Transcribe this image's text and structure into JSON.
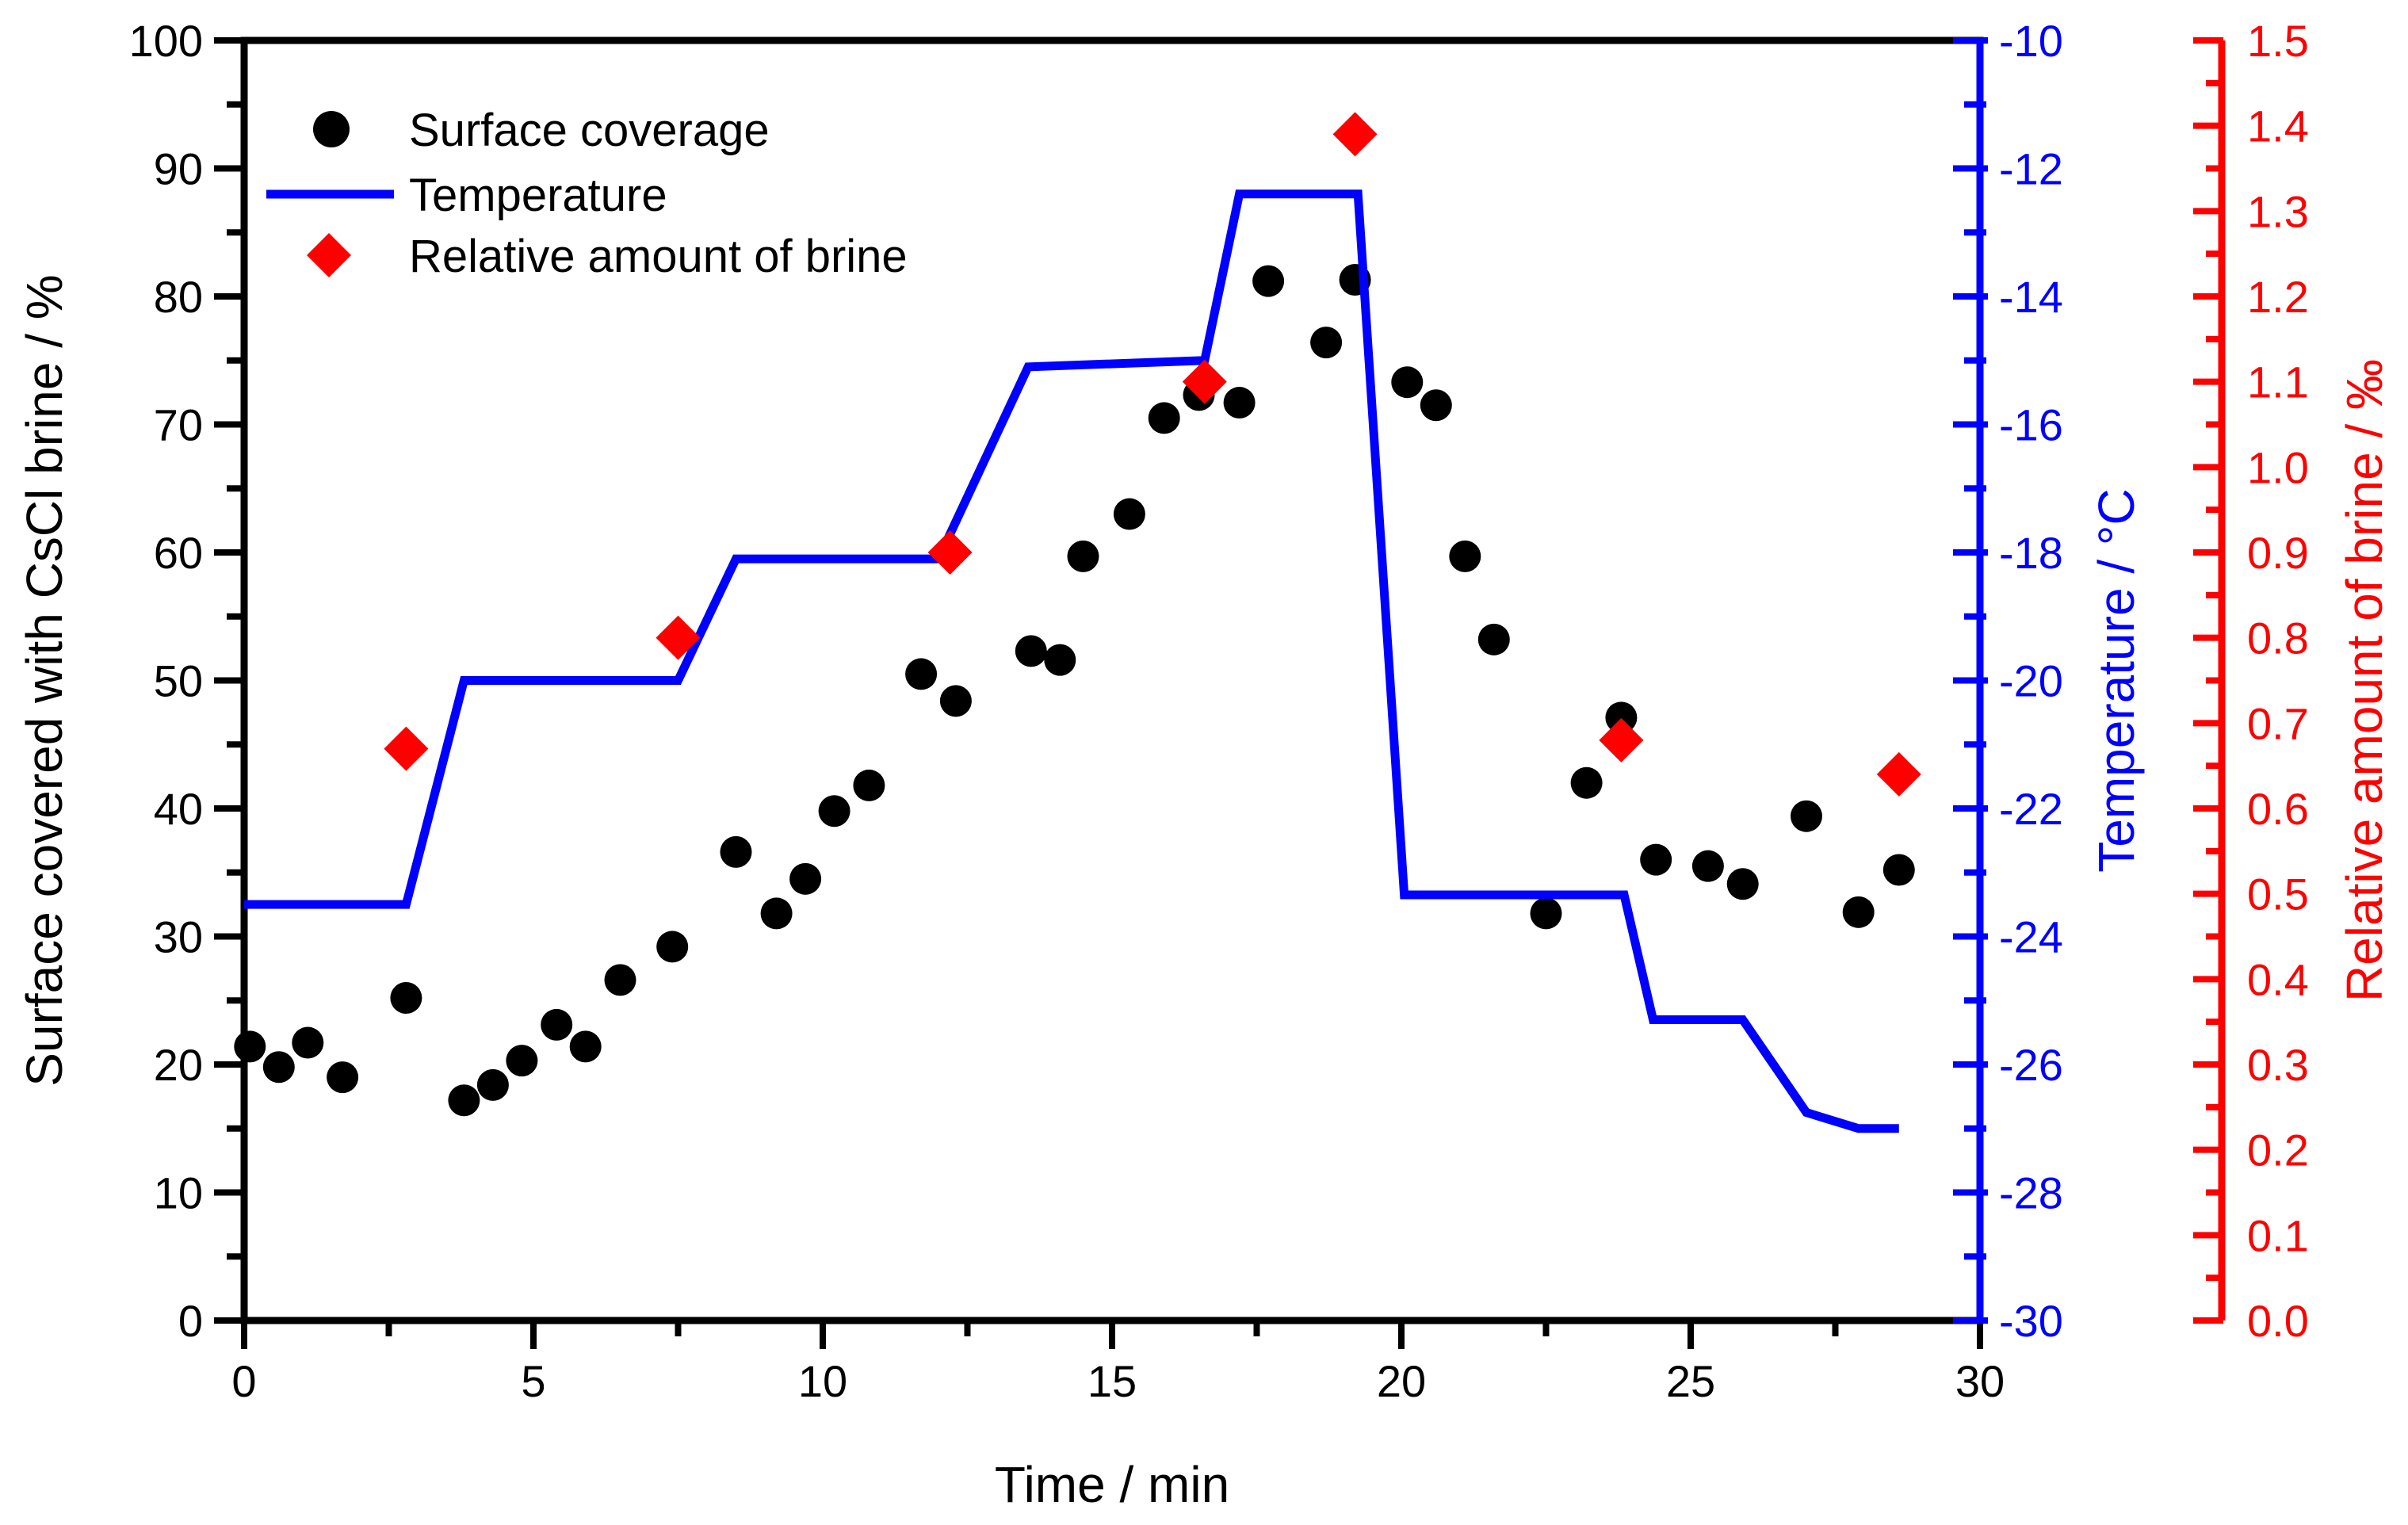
{
  "chart_data": {
    "type": "scatter",
    "background": "#ffffff",
    "axes": {
      "x": {
        "label": "Time / min",
        "min": 0,
        "max": 30,
        "tick_values": [
          0,
          5,
          10,
          15,
          20,
          25,
          30
        ],
        "tick_labels": [
          "0",
          "5",
          "10",
          "15",
          "20",
          "25",
          "30"
        ],
        "minor_step": 2.5,
        "color": "#000000"
      },
      "y_left": {
        "label": "Surface covered with CsCl brine / %",
        "min": 0,
        "max": 100,
        "tick_values": [
          0,
          10,
          20,
          30,
          40,
          50,
          60,
          70,
          80,
          90,
          100
        ],
        "tick_labels": [
          "0",
          "10",
          "20",
          "30",
          "40",
          "50",
          "60",
          "70",
          "80",
          "90",
          "100"
        ],
        "minor_step": 5,
        "color": "#000000"
      },
      "y_right_temp": {
        "label": "Temperature / °C",
        "min": -30,
        "max": -10,
        "tick_values": [
          -30,
          -28,
          -26,
          -24,
          -22,
          -20,
          -18,
          -16,
          -14,
          -12,
          -10
        ],
        "tick_labels": [
          "-30",
          "-28",
          "-26",
          "-24",
          "-22",
          "-20",
          "-18",
          "-16",
          "-14",
          "-12",
          "-10"
        ],
        "minor_step": 1,
        "color": "#0000ff"
      },
      "y_right_brine": {
        "label": "Relative amount of brine / ‰",
        "min": 0.0,
        "max": 1.5,
        "tick_values": [
          0.0,
          0.1,
          0.2,
          0.3,
          0.4,
          0.5,
          0.6,
          0.7,
          0.8,
          0.9,
          1.0,
          1.1,
          1.2,
          1.3,
          1.4,
          1.5
        ],
        "tick_labels": [
          "0.0",
          "0.1",
          "0.2",
          "0.3",
          "0.4",
          "0.5",
          "0.6",
          "0.7",
          "0.8",
          "0.9",
          "1.0",
          "1.1",
          "1.2",
          "1.3",
          "1.4",
          "1.5"
        ],
        "minor_step": 0.05,
        "color": "#ff0000"
      }
    },
    "legend": {
      "position": "top-left-inside",
      "entries": [
        "Surface coverage",
        "Temperature",
        "Relative amount of brine"
      ]
    },
    "series": [
      {
        "name": "Surface coverage",
        "type": "scatter",
        "marker": "circle",
        "color": "#000000",
        "axis": "y_left",
        "points": [
          [
            0.1,
            21.4
          ],
          [
            0.6,
            19.8
          ],
          [
            1.1,
            21.7
          ],
          [
            1.7,
            19.0
          ],
          [
            2.8,
            25.2
          ],
          [
            3.8,
            17.2
          ],
          [
            4.3,
            18.4
          ],
          [
            4.8,
            20.3
          ],
          [
            5.4,
            23.1
          ],
          [
            5.9,
            21.4
          ],
          [
            6.5,
            26.6
          ],
          [
            7.4,
            29.2
          ],
          [
            8.5,
            36.6
          ],
          [
            9.2,
            31.8
          ],
          [
            9.7,
            34.5
          ],
          [
            10.2,
            39.8
          ],
          [
            10.8,
            41.8
          ],
          [
            11.7,
            50.5
          ],
          [
            12.3,
            48.4
          ],
          [
            13.6,
            52.3
          ],
          [
            14.1,
            51.6
          ],
          [
            14.5,
            59.7
          ],
          [
            15.3,
            63.0
          ],
          [
            15.9,
            70.5
          ],
          [
            16.5,
            72.3
          ],
          [
            17.2,
            71.7
          ],
          [
            17.7,
            81.2
          ],
          [
            18.7,
            76.4
          ],
          [
            19.2,
            81.3
          ],
          [
            20.1,
            73.3
          ],
          [
            20.6,
            71.5
          ],
          [
            21.1,
            59.7
          ],
          [
            21.6,
            53.2
          ],
          [
            22.5,
            31.8
          ],
          [
            23.2,
            42.0
          ],
          [
            23.8,
            47.1
          ],
          [
            24.4,
            36.0
          ],
          [
            25.3,
            35.5
          ],
          [
            25.9,
            34.1
          ],
          [
            27.0,
            39.4
          ],
          [
            27.9,
            31.9
          ],
          [
            28.6,
            35.2
          ]
        ]
      },
      {
        "name": "Temperature",
        "type": "line",
        "color": "#0000ff",
        "axis": "y_right_temp",
        "points": [
          [
            0,
            -23.5
          ],
          [
            2.8,
            -23.5
          ],
          [
            3.8,
            -20.0
          ],
          [
            7.5,
            -20.0
          ],
          [
            8.5,
            -18.1
          ],
          [
            12.0,
            -18.1
          ],
          [
            13.55,
            -15.1
          ],
          [
            16.6,
            -15.0
          ],
          [
            17.2,
            -12.4
          ],
          [
            19.25,
            -12.4
          ],
          [
            20.05,
            -23.35
          ],
          [
            23.85,
            -23.35
          ],
          [
            24.35,
            -25.3
          ],
          [
            25.9,
            -25.3
          ],
          [
            27.0,
            -26.75
          ],
          [
            27.9,
            -27.0
          ],
          [
            28.6,
            -27.0
          ]
        ]
      },
      {
        "name": "Relative amount of brine",
        "type": "scatter",
        "marker": "diamond",
        "color": "#ff0000",
        "axis": "y_right_brine",
        "points": [
          [
            2.8,
            0.67
          ],
          [
            7.5,
            0.8
          ],
          [
            12.2,
            0.9
          ],
          [
            16.6,
            1.1
          ],
          [
            19.2,
            1.39
          ],
          [
            23.8,
            0.68
          ],
          [
            28.6,
            0.64
          ]
        ]
      }
    ]
  }
}
